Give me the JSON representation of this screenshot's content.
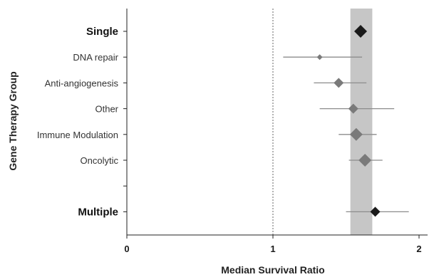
{
  "chart_data": {
    "type": "scatter",
    "subtype": "forest-plot",
    "title": "",
    "xlabel": "Median Survival Ratio",
    "ylabel": "Gene Therapy Group",
    "xlim": [
      0,
      2
    ],
    "x_ticks": [
      "0",
      "1",
      "2"
    ],
    "reference_line": 1,
    "pooled_band": [
      1.53,
      1.68
    ],
    "grid": false,
    "categories": [
      {
        "label": "Single",
        "bold": true,
        "estimate": 1.6,
        "ci": [
          1.56,
          1.64
        ],
        "marker_color": "#1a1a1a",
        "marker_size": "large"
      },
      {
        "label": "DNA repair",
        "bold": false,
        "estimate": 1.32,
        "ci": [
          1.07,
          1.61
        ],
        "marker_color": "#7a7a7a",
        "marker_size": "small"
      },
      {
        "label": "Anti-angiogenesis",
        "bold": false,
        "estimate": 1.45,
        "ci": [
          1.28,
          1.64
        ],
        "marker_color": "#7a7a7a",
        "marker_size": "medium"
      },
      {
        "label": "Other",
        "bold": false,
        "estimate": 1.55,
        "ci": [
          1.32,
          1.83
        ],
        "marker_color": "#7a7a7a",
        "marker_size": "medium"
      },
      {
        "label": "Immune Modulation",
        "bold": false,
        "estimate": 1.57,
        "ci": [
          1.45,
          1.71
        ],
        "marker_color": "#7a7a7a",
        "marker_size": "large"
      },
      {
        "label": "Oncolytic",
        "bold": false,
        "estimate": 1.63,
        "ci": [
          1.52,
          1.75
        ],
        "marker_color": "#7a7a7a",
        "marker_size": "large"
      },
      {
        "label": "",
        "bold": false,
        "estimate": null,
        "ci": null,
        "marker_color": "",
        "marker_size": ""
      },
      {
        "label": "Multiple",
        "bold": true,
        "estimate": 1.7,
        "ci": [
          1.5,
          1.93
        ],
        "marker_color": "#1a1a1a",
        "marker_size": "medium"
      }
    ],
    "colors": {
      "band": "#c6c6c6",
      "ci_line": "#8c8c8c",
      "axis": "#222222",
      "reference": "#666666"
    }
  }
}
